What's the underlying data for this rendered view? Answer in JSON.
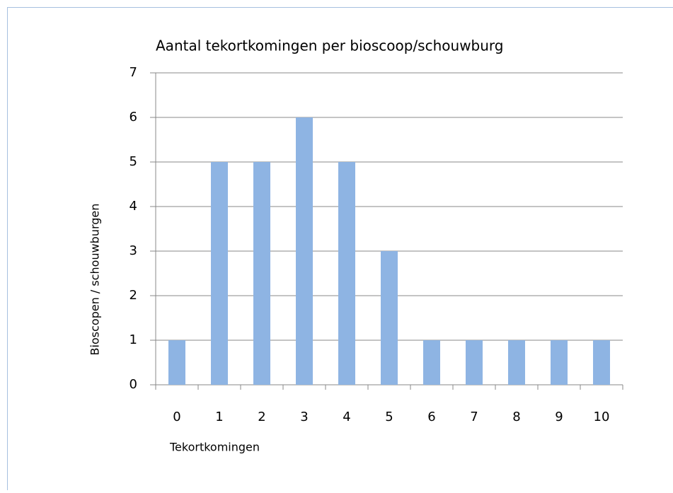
{
  "chart_data": {
    "type": "bar",
    "title": "Aantal  tekortkomingen per bioscoop/schouwburg",
    "x_label": "Tekortkomingen",
    "y_label": "Bioscopen /  schouwburgen",
    "categories": [
      "0",
      "1",
      "2",
      "3",
      "4",
      "5",
      "6",
      "7",
      "8",
      "9",
      "10"
    ],
    "values": [
      1,
      5,
      5,
      6,
      5,
      3,
      1,
      1,
      1,
      1,
      1
    ],
    "color": "#8eb4e3",
    "ylim": [
      0,
      7
    ],
    "yticks": [
      0,
      1,
      2,
      3,
      4,
      5,
      6,
      7
    ],
    "grid": true
  }
}
